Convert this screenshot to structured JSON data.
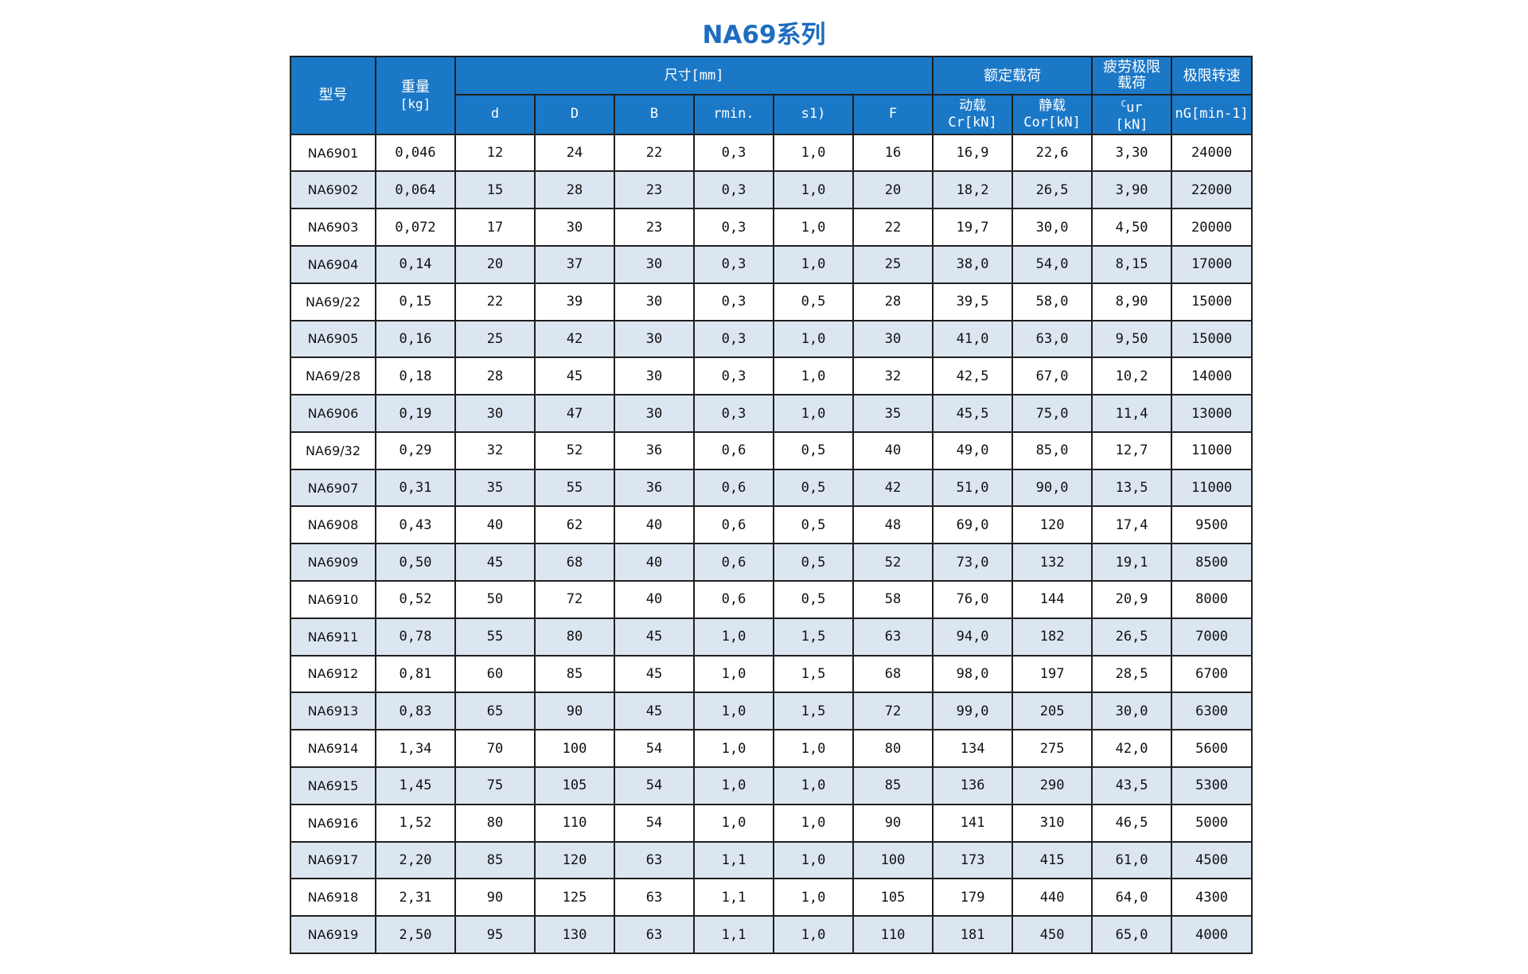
{
  "title": "NA69系列",
  "header": {
    "model": "型号",
    "weight_label": "重量",
    "weight_unit": "[kg]",
    "dimensions": "尺寸[mm]",
    "d": "d",
    "D": "D",
    "B": "B",
    "rmin": "rmin.",
    "s": "s1)",
    "F": "F",
    "rated_load": "额定载荷",
    "dynamic_label": "动载",
    "dynamic_unit": "Cr[kN]",
    "static_label": "静载",
    "static_unit": "Cor[kN]",
    "fatigue": "疲劳极限载荷",
    "fatigue_sym": "C",
    "fatigue_sub": "ur",
    "fatigue_unit": "[kN]",
    "speed": "极限转速",
    "speed_unit": "nG[min-1]"
  },
  "rows": [
    [
      "NA6901",
      "0,046",
      "12",
      "24",
      "22",
      "0,3",
      "1,0",
      "16",
      "16,9",
      "22,6",
      "3,30",
      "24000"
    ],
    [
      "NA6902",
      "0,064",
      "15",
      "28",
      "23",
      "0,3",
      "1,0",
      "20",
      "18,2",
      "26,5",
      "3,90",
      "22000"
    ],
    [
      "NA6903",
      "0,072",
      "17",
      "30",
      "23",
      "0,3",
      "1,0",
      "22",
      "19,7",
      "30,0",
      "4,50",
      "20000"
    ],
    [
      "NA6904",
      "0,14",
      "20",
      "37",
      "30",
      "0,3",
      "1,0",
      "25",
      "38,0",
      "54,0",
      "8,15",
      "17000"
    ],
    [
      "NA69/22",
      "0,15",
      "22",
      "39",
      "30",
      "0,3",
      "0,5",
      "28",
      "39,5",
      "58,0",
      "8,90",
      "15000"
    ],
    [
      "NA6905",
      "0,16",
      "25",
      "42",
      "30",
      "0,3",
      "1,0",
      "30",
      "41,0",
      "63,0",
      "9,50",
      "15000"
    ],
    [
      "NA69/28",
      "0,18",
      "28",
      "45",
      "30",
      "0,3",
      "1,0",
      "32",
      "42,5",
      "67,0",
      "10,2",
      "14000"
    ],
    [
      "NA6906",
      "0,19",
      "30",
      "47",
      "30",
      "0,3",
      "1,0",
      "35",
      "45,5",
      "75,0",
      "11,4",
      "13000"
    ],
    [
      "NA69/32",
      "0,29",
      "32",
      "52",
      "36",
      "0,6",
      "0,5",
      "40",
      "49,0",
      "85,0",
      "12,7",
      "11000"
    ],
    [
      "NA6907",
      "0,31",
      "35",
      "55",
      "36",
      "0,6",
      "0,5",
      "42",
      "51,0",
      "90,0",
      "13,5",
      "11000"
    ],
    [
      "NA6908",
      "0,43",
      "40",
      "62",
      "40",
      "0,6",
      "0,5",
      "48",
      "69,0",
      "120",
      "17,4",
      "9500"
    ],
    [
      "NA6909",
      "0,50",
      "45",
      "68",
      "40",
      "0,6",
      "0,5",
      "52",
      "73,0",
      "132",
      "19,1",
      "8500"
    ],
    [
      "NA6910",
      "0,52",
      "50",
      "72",
      "40",
      "0,6",
      "0,5",
      "58",
      "76,0",
      "144",
      "20,9",
      "8000"
    ],
    [
      "NA6911",
      "0,78",
      "55",
      "80",
      "45",
      "1,0",
      "1,5",
      "63",
      "94,0",
      "182",
      "26,5",
      "7000"
    ],
    [
      "NA6912",
      "0,81",
      "60",
      "85",
      "45",
      "1,0",
      "1,5",
      "68",
      "98,0",
      "197",
      "28,5",
      "6700"
    ],
    [
      "NA6913",
      "0,83",
      "65",
      "90",
      "45",
      "1,0",
      "1,5",
      "72",
      "99,0",
      "205",
      "30,0",
      "6300"
    ],
    [
      "NA6914",
      "1,34",
      "70",
      "100",
      "54",
      "1,0",
      "1,0",
      "80",
      "134",
      "275",
      "42,0",
      "5600"
    ],
    [
      "NA6915",
      "1,45",
      "75",
      "105",
      "54",
      "1,0",
      "1,0",
      "85",
      "136",
      "290",
      "43,5",
      "5300"
    ],
    [
      "NA6916",
      "1,52",
      "80",
      "110",
      "54",
      "1,0",
      "1,0",
      "90",
      "141",
      "310",
      "46,5",
      "5000"
    ],
    [
      "NA6917",
      "2,20",
      "85",
      "120",
      "63",
      "1,1",
      "1,0",
      "100",
      "173",
      "415",
      "61,0",
      "4500"
    ],
    [
      "NA6918",
      "2,31",
      "90",
      "125",
      "63",
      "1,1",
      "1,0",
      "105",
      "179",
      "440",
      "64,0",
      "4300"
    ],
    [
      "NA6919",
      "2,50",
      "95",
      "130",
      "63",
      "1,1",
      "1,0",
      "110",
      "181",
      "450",
      "65,0",
      "4000"
    ]
  ]
}
